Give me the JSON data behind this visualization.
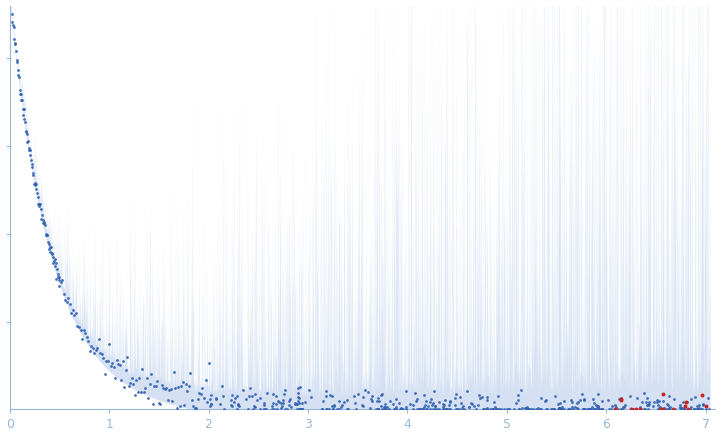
{
  "x_min": 0,
  "x_max": 7.1,
  "y_min": 0,
  "y_max": 0.92,
  "background_color": "#ffffff",
  "scatter_color_main": "#3060b0",
  "scatter_color_outlier": "#cc2222",
  "fill_color": "#c8d8ef",
  "fill_alpha": 0.75,
  "axis_color": "#99b8d8",
  "tick_color": "#99b8d8",
  "label_color": "#99b8d8",
  "seed_main": 42,
  "seed_spike": 123,
  "seed_red": 77
}
